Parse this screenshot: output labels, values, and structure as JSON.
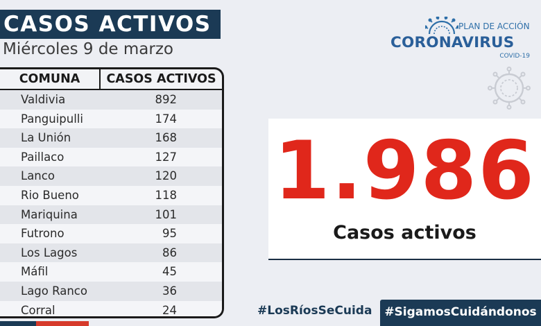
{
  "header": {
    "title": "CASOS ACTIVOS",
    "date": "Miércoles 9 de marzo"
  },
  "table": {
    "columns": [
      "COMUNA",
      "CASOS ACTIVOS"
    ],
    "rows": [
      {
        "comuna": "Valdivia",
        "casos": "892"
      },
      {
        "comuna": "Panguipulli",
        "casos": "174"
      },
      {
        "comuna": "La Unión",
        "casos": "168"
      },
      {
        "comuna": "Paillaco",
        "casos": "127"
      },
      {
        "comuna": "Lanco",
        "casos": "120"
      },
      {
        "comuna": "Rio Bueno",
        "casos": "118"
      },
      {
        "comuna": "Mariquina",
        "casos": "101"
      },
      {
        "comuna": "Futrono",
        "casos": "95"
      },
      {
        "comuna": "Los Lagos",
        "casos": "86"
      },
      {
        "comuna": "Máfil",
        "casos": "45"
      },
      {
        "comuna": "Lago Ranco",
        "casos": "36"
      },
      {
        "comuna": "Corral",
        "casos": "24"
      }
    ]
  },
  "logo": {
    "plan": "PLAN DE ACCIÓN",
    "word": "CORONAVIRUS",
    "covid": "COVID-19"
  },
  "summary": {
    "total": "1.986",
    "label": "Casos activos"
  },
  "footer": {
    "hashtag_left": "#LosRíosSeCuida",
    "hashtag_right": "#SigamosCuidándonos"
  },
  "colors": {
    "navy": "#1b3a55",
    "red": "#e0271b",
    "logo_blue": "#2a5f99"
  },
  "icons": [
    "virus-icon",
    "virus-outline-icon"
  ]
}
